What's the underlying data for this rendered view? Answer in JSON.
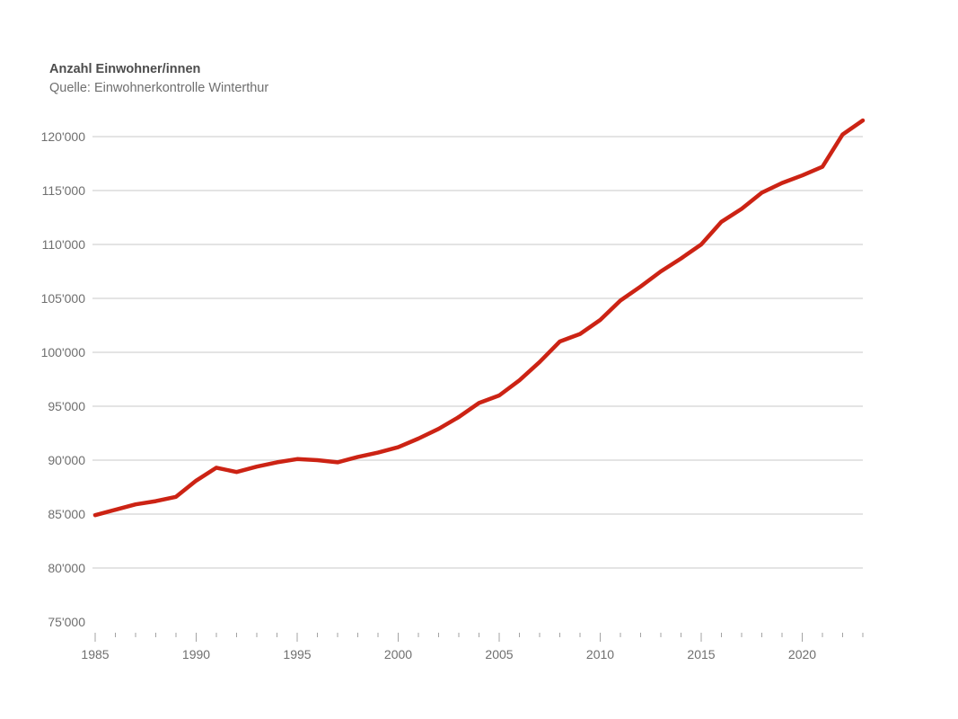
{
  "header": {
    "title": "Anzahl Einwohner/innen",
    "subtitle": "Quelle: Einwohnerkontrolle Winterthur"
  },
  "colors": {
    "line": "#cc2314",
    "gridline": "#dcdcdc",
    "tick": "#a3a3a3",
    "axis_label_text": "#6f6f6f",
    "title_text": "#4c4c4c",
    "background": "#ffffff"
  },
  "chart_data": {
    "type": "line",
    "title": "Anzahl Einwohner/innen",
    "subtitle": "Quelle: Einwohnerkontrolle Winterthur",
    "legend": "none",
    "grid": "horizontal-only",
    "x": [
      1985,
      1986,
      1987,
      1988,
      1989,
      1990,
      1991,
      1992,
      1993,
      1994,
      1995,
      1996,
      1997,
      1998,
      1999,
      2000,
      2001,
      2002,
      2003,
      2004,
      2005,
      2006,
      2007,
      2008,
      2009,
      2010,
      2011,
      2012,
      2013,
      2014,
      2015,
      2016,
      2017,
      2018,
      2019,
      2020,
      2021,
      2022,
      2023
    ],
    "series": [
      {
        "name": "Anzahl Einwohner/innen",
        "values": [
          84900,
          85400,
          85900,
          86200,
          86600,
          88100,
          89300,
          88900,
          89400,
          89800,
          90100,
          90000,
          89800,
          90300,
          90700,
          91200,
          92000,
          92900,
          94000,
          95300,
          96000,
          97400,
          99100,
          101000,
          101700,
          103000,
          104800,
          106100,
          107500,
          108700,
          110000,
          112100,
          113300,
          114800,
          115700,
          116400,
          117200,
          120200,
          121500
        ]
      }
    ],
    "xlabel": "",
    "ylabel": "",
    "xlim": [
      1985,
      2023
    ],
    "ylim": [
      75000,
      122500
    ],
    "x_axis": {
      "tick_every_year": true,
      "labeled_ticks": [
        "1985",
        "1990",
        "1995",
        "2000",
        "2005",
        "2010",
        "2015",
        "2020"
      ]
    },
    "y_axis": {
      "ticks": [
        {
          "value": 75000,
          "label": "75'000",
          "gridline": false
        },
        {
          "value": 80000,
          "label": "80'000",
          "gridline": true
        },
        {
          "value": 85000,
          "label": "85'000",
          "gridline": true
        },
        {
          "value": 90000,
          "label": "90'000",
          "gridline": true
        },
        {
          "value": 95000,
          "label": "95'000",
          "gridline": true
        },
        {
          "value": 100000,
          "label": "100'000",
          "gridline": true
        },
        {
          "value": 105000,
          "label": "105'000",
          "gridline": true
        },
        {
          "value": 110000,
          "label": "110'000",
          "gridline": true
        },
        {
          "value": 115000,
          "label": "115'000",
          "gridline": true
        },
        {
          "value": 120000,
          "label": "120'000",
          "gridline": true
        }
      ]
    }
  }
}
